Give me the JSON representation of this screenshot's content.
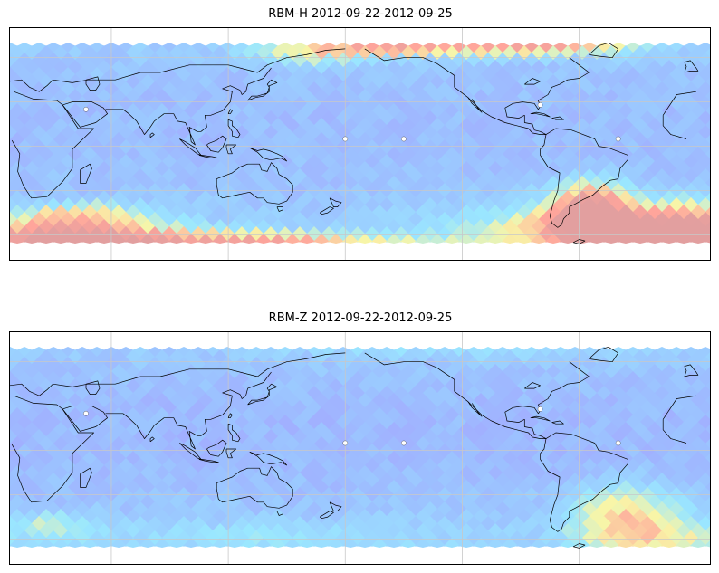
{
  "panels": [
    {
      "title": "RBM-H 2012-09-22-2012-09-25",
      "field": "horizontal",
      "color_scale": [
        "#6e5bff",
        "#5b9bff",
        "#58d8ff",
        "#f5f06e",
        "#ff6a5a",
        "#d06060"
      ],
      "data_alpha": 0.6
    },
    {
      "title": "RBM-Z 2012-09-22-2012-09-25",
      "field": "vertical",
      "color_scale": [
        "#6e5bff",
        "#5b9bff",
        "#58d8ff",
        "#f5f06e",
        "#ff6a5a",
        "#d06060"
      ],
      "data_alpha": 0.6
    }
  ],
  "map": {
    "projection": "equirectangular, Pacific-centered",
    "gridlines": true,
    "coastlines": true,
    "colors": {
      "coast": "#000000",
      "grid": "#c8c8c8",
      "frame": "#000000"
    }
  }
}
